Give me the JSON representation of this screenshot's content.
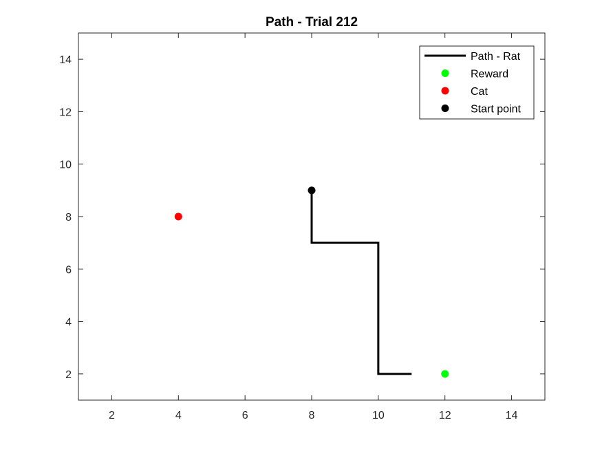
{
  "chart_data": {
    "type": "line",
    "title": "Path - Trial 212",
    "xlabel": "",
    "ylabel": "",
    "xlim": [
      1,
      15
    ],
    "ylim": [
      1,
      15
    ],
    "xticks": [
      2,
      4,
      6,
      8,
      10,
      12,
      14
    ],
    "yticks": [
      2,
      4,
      6,
      8,
      10,
      12,
      14
    ],
    "xtick_labels": [
      "2",
      "4",
      "6",
      "8",
      "10",
      "12",
      "14"
    ],
    "ytick_labels": [
      "2",
      "4",
      "6",
      "8",
      "10",
      "12",
      "14"
    ],
    "grid": false,
    "legend_position": "top-right",
    "series": [
      {
        "name": "Path - Rat",
        "kind": "line",
        "color": "#000000",
        "points": [
          [
            8,
            9
          ],
          [
            8,
            7
          ],
          [
            10,
            7
          ],
          [
            10,
            2
          ],
          [
            11,
            2
          ]
        ]
      },
      {
        "name": "Reward",
        "kind": "marker",
        "color": "#00ff00",
        "points": [
          [
            12,
            2
          ]
        ]
      },
      {
        "name": "Cat",
        "kind": "marker",
        "color": "#ff0000",
        "points": [
          [
            4,
            8
          ]
        ]
      },
      {
        "name": "Start point",
        "kind": "marker",
        "color": "#000000",
        "points": [
          [
            8,
            9
          ]
        ]
      }
    ]
  }
}
